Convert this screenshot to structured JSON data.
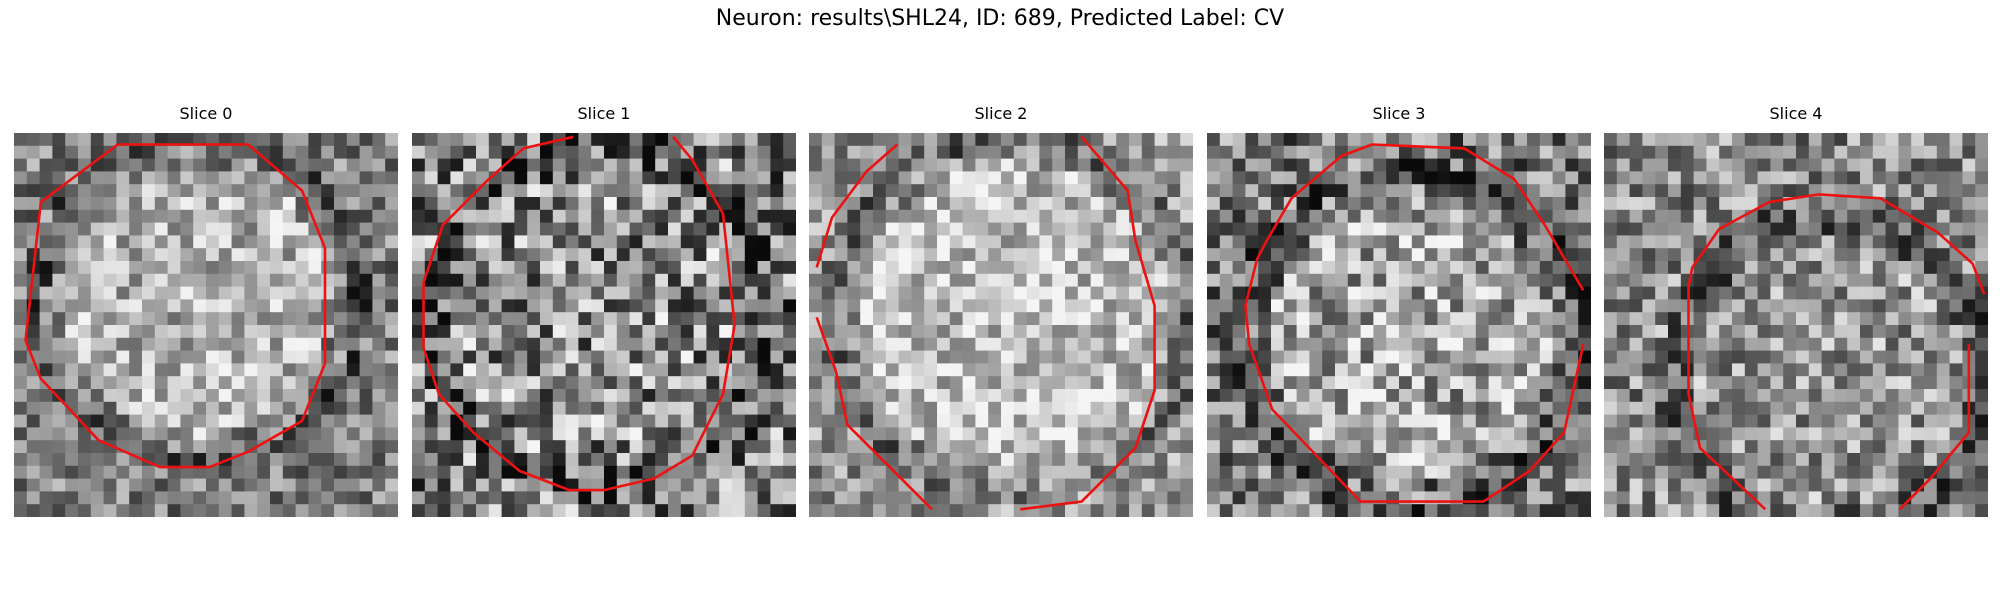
{
  "figure": {
    "title": "Neuron: results\\SHL24, ID: 689, Predicted Label: CV",
    "contour_color": "#ee1111",
    "panels": [
      {
        "title": "Slice 0"
      },
      {
        "title": "Slice 1"
      },
      {
        "title": "Slice 2"
      },
      {
        "title": "Slice 3"
      },
      {
        "title": "Slice 4"
      }
    ]
  }
}
